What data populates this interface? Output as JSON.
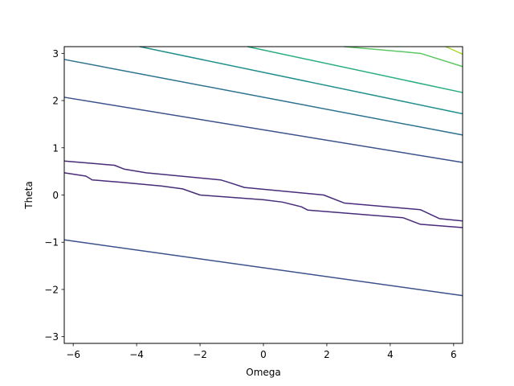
{
  "chart_data": {
    "type": "contour",
    "xlabel": "Omega",
    "ylabel": "Theta",
    "xlim": [
      -6.283,
      6.283
    ],
    "ylim": [
      -3.1416,
      3.1416
    ],
    "x_ticks": [
      -6,
      -4,
      -2,
      0,
      2,
      4,
      6
    ],
    "y_ticks": [
      -3,
      -2,
      -1,
      0,
      1,
      2,
      3
    ],
    "grid": false,
    "contours": [
      {
        "color": "#472c7a",
        "points": [
          [
            -6.283,
            0.47
          ],
          [
            -5.6,
            0.4
          ],
          [
            -5.4,
            0.32
          ],
          [
            -4.5,
            0.27
          ],
          [
            -3.2,
            0.19
          ],
          [
            -2.55,
            0.13
          ],
          [
            -2.0,
            0.0
          ],
          [
            0.0,
            -0.1
          ],
          [
            0.6,
            -0.15
          ],
          [
            1.2,
            -0.25
          ],
          [
            1.4,
            -0.32
          ],
          [
            4.4,
            -0.48
          ],
          [
            4.95,
            -0.62
          ],
          [
            6.283,
            -0.69
          ]
        ]
      },
      {
        "color": "#472c7a",
        "points": [
          [
            -6.283,
            0.72
          ],
          [
            -4.7,
            0.63
          ],
          [
            -4.4,
            0.55
          ],
          [
            -3.7,
            0.47
          ],
          [
            -1.35,
            0.32
          ],
          [
            -1.15,
            0.28
          ],
          [
            -0.6,
            0.16
          ],
          [
            1.9,
            0.0
          ],
          [
            2.55,
            -0.17
          ],
          [
            4.95,
            -0.31
          ],
          [
            5.55,
            -0.5
          ],
          [
            6.283,
            -0.55
          ]
        ]
      },
      {
        "color": "#3b518b",
        "points": [
          [
            -6.283,
            -0.95
          ],
          [
            6.283,
            -2.13
          ]
        ]
      },
      {
        "color": "#3b518b",
        "points": [
          [
            -6.283,
            2.07
          ],
          [
            6.283,
            0.69
          ]
        ]
      },
      {
        "color": "#2c718e",
        "points": [
          [
            -6.283,
            2.87
          ],
          [
            6.283,
            1.27
          ]
        ]
      },
      {
        "color": "#21908d",
        "points": [
          [
            -3.9,
            3.1416
          ],
          [
            6.283,
            1.72
          ]
        ]
      },
      {
        "color": "#27ad81",
        "points": [
          [
            -0.5,
            3.1416
          ],
          [
            6.283,
            2.17
          ]
        ]
      },
      {
        "color": "#5cc863",
        "points": [
          [
            2.55,
            3.1416
          ],
          [
            4.95,
            3.0
          ],
          [
            6.283,
            2.72
          ]
        ]
      },
      {
        "color": "#aadc32",
        "points": [
          [
            5.75,
            3.1416
          ],
          [
            6.283,
            2.98
          ]
        ]
      }
    ]
  }
}
